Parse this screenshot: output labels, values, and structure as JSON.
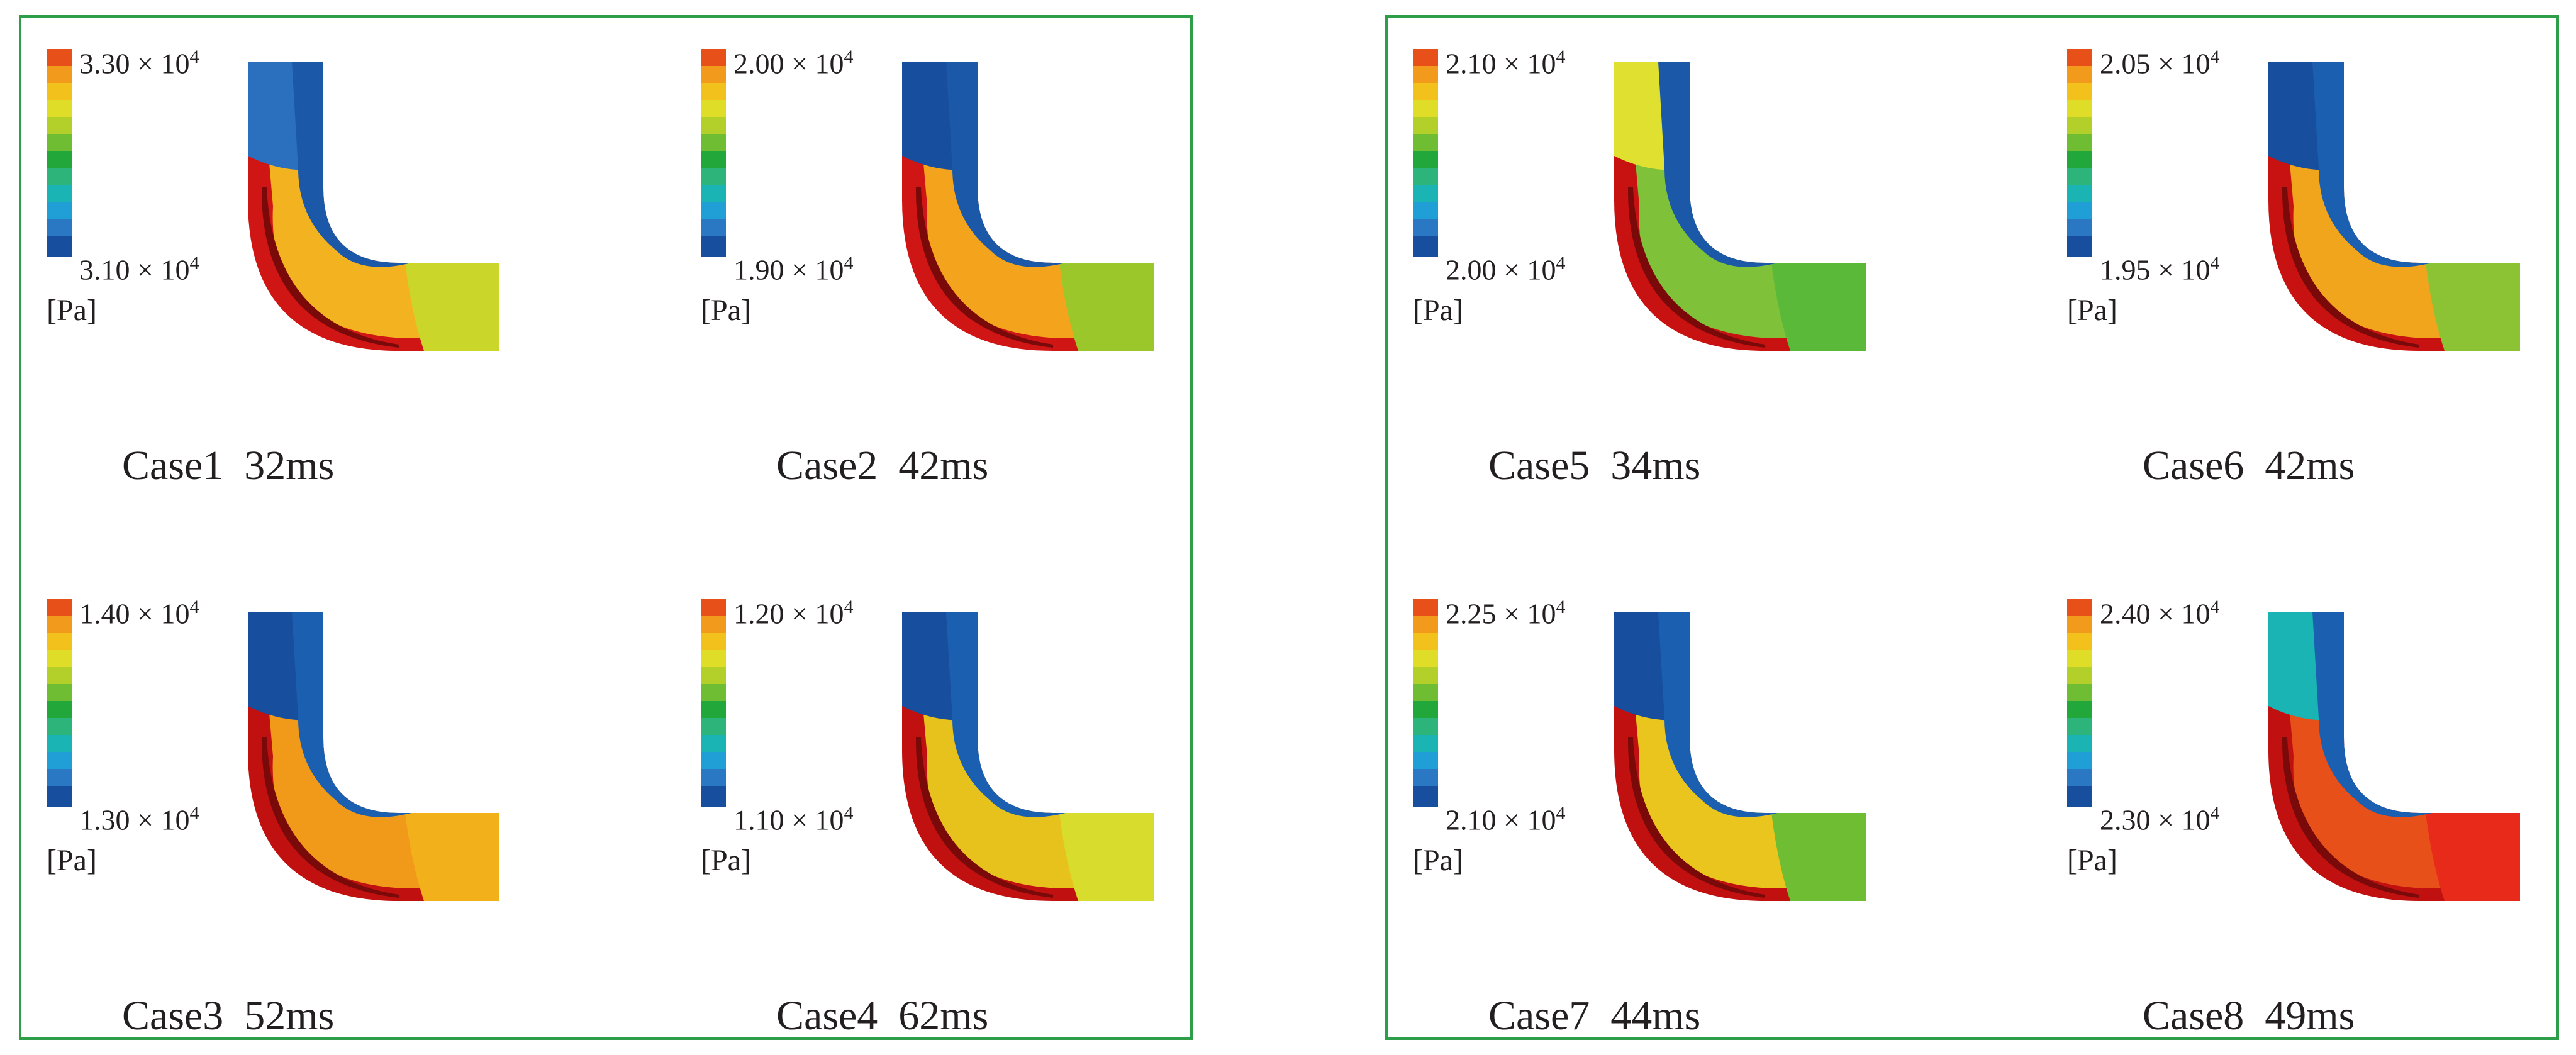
{
  "colorbar_colors": [
    "#e8501a",
    "#f29a1c",
    "#f2c11b",
    "#e0dd28",
    "#b3cf2a",
    "#6fbd33",
    "#22a83a",
    "#2cb47a",
    "#19b4b3",
    "#1f9fd6",
    "#2a78c4",
    "#174f9e"
  ],
  "groups": [
    {
      "panels": [
        {
          "case": "Case1",
          "time": "32ms",
          "max": "3.30 × 10",
          "min": "3.10 × 10",
          "exp": "4",
          "unit": "[Pa]",
          "bands": {
            "up": "#2b6fbf",
            "inner": "#1b58a8",
            "outer": "#d01515",
            "mid": "#f3b21f",
            "down": "#cbd62a"
          }
        },
        {
          "case": "Case2",
          "time": "42ms",
          "max": "2.00 × 10",
          "min": "1.90 × 10",
          "exp": "4",
          "unit": "[Pa]",
          "bands": {
            "up": "#174f9e",
            "inner": "#1b58a8",
            "outer": "#d01515",
            "mid": "#f3a41c",
            "down": "#9cc72b"
          }
        },
        {
          "case": "Case3",
          "time": "52ms",
          "max": "1.40 × 10",
          "min": "1.30 × 10",
          "exp": "4",
          "unit": "[Pa]",
          "bands": {
            "up": "#174f9e",
            "inner": "#1a5fb0",
            "outer": "#c01010",
            "mid": "#f19a1a",
            "down": "#f2b01a"
          }
        },
        {
          "case": "Case4",
          "time": "62ms",
          "max": "1.20 × 10",
          "min": "1.10 × 10",
          "exp": "4",
          "unit": "[Pa]",
          "bands": {
            "up": "#174f9e",
            "inner": "#1a5fb0",
            "outer": "#c01010",
            "mid": "#e8c21c",
            "down": "#d8dc2c"
          }
        }
      ]
    },
    {
      "panels": [
        {
          "case": "Case5",
          "time": "34ms",
          "max": "2.10 × 10",
          "min": "2.00 × 10",
          "exp": "4",
          "unit": "[Pa]",
          "bands": {
            "up": "#dfe030",
            "inner": "#1b58a8",
            "outer": "#c81212",
            "mid": "#7fc23a",
            "down": "#5bb93a"
          }
        },
        {
          "case": "Case6",
          "time": "42ms",
          "max": "2.05 × 10",
          "min": "1.95 × 10",
          "exp": "4",
          "unit": "[Pa]",
          "bands": {
            "up": "#174f9e",
            "inner": "#1a5fb0",
            "outer": "#c81212",
            "mid": "#f0a51d",
            "down": "#8cc334"
          }
        },
        {
          "case": "Case7",
          "time": "44ms",
          "max": "2.25 × 10",
          "min": "2.10 × 10",
          "exp": "4",
          "unit": "[Pa]",
          "bands": {
            "up": "#174f9e",
            "inner": "#1a5fb0",
            "outer": "#c01010",
            "mid": "#e9c51e",
            "down": "#6fbd33"
          }
        },
        {
          "case": "Case8",
          "time": "49ms",
          "max": "2.40 × 10",
          "min": "2.30 × 10",
          "exp": "4",
          "unit": "[Pa]",
          "bands": {
            "up": "#19b4b3",
            "inner": "#1a5fb0",
            "outer": "#c01010",
            "mid": "#e8501a",
            "down": "#e82a1a"
          }
        }
      ]
    }
  ]
}
